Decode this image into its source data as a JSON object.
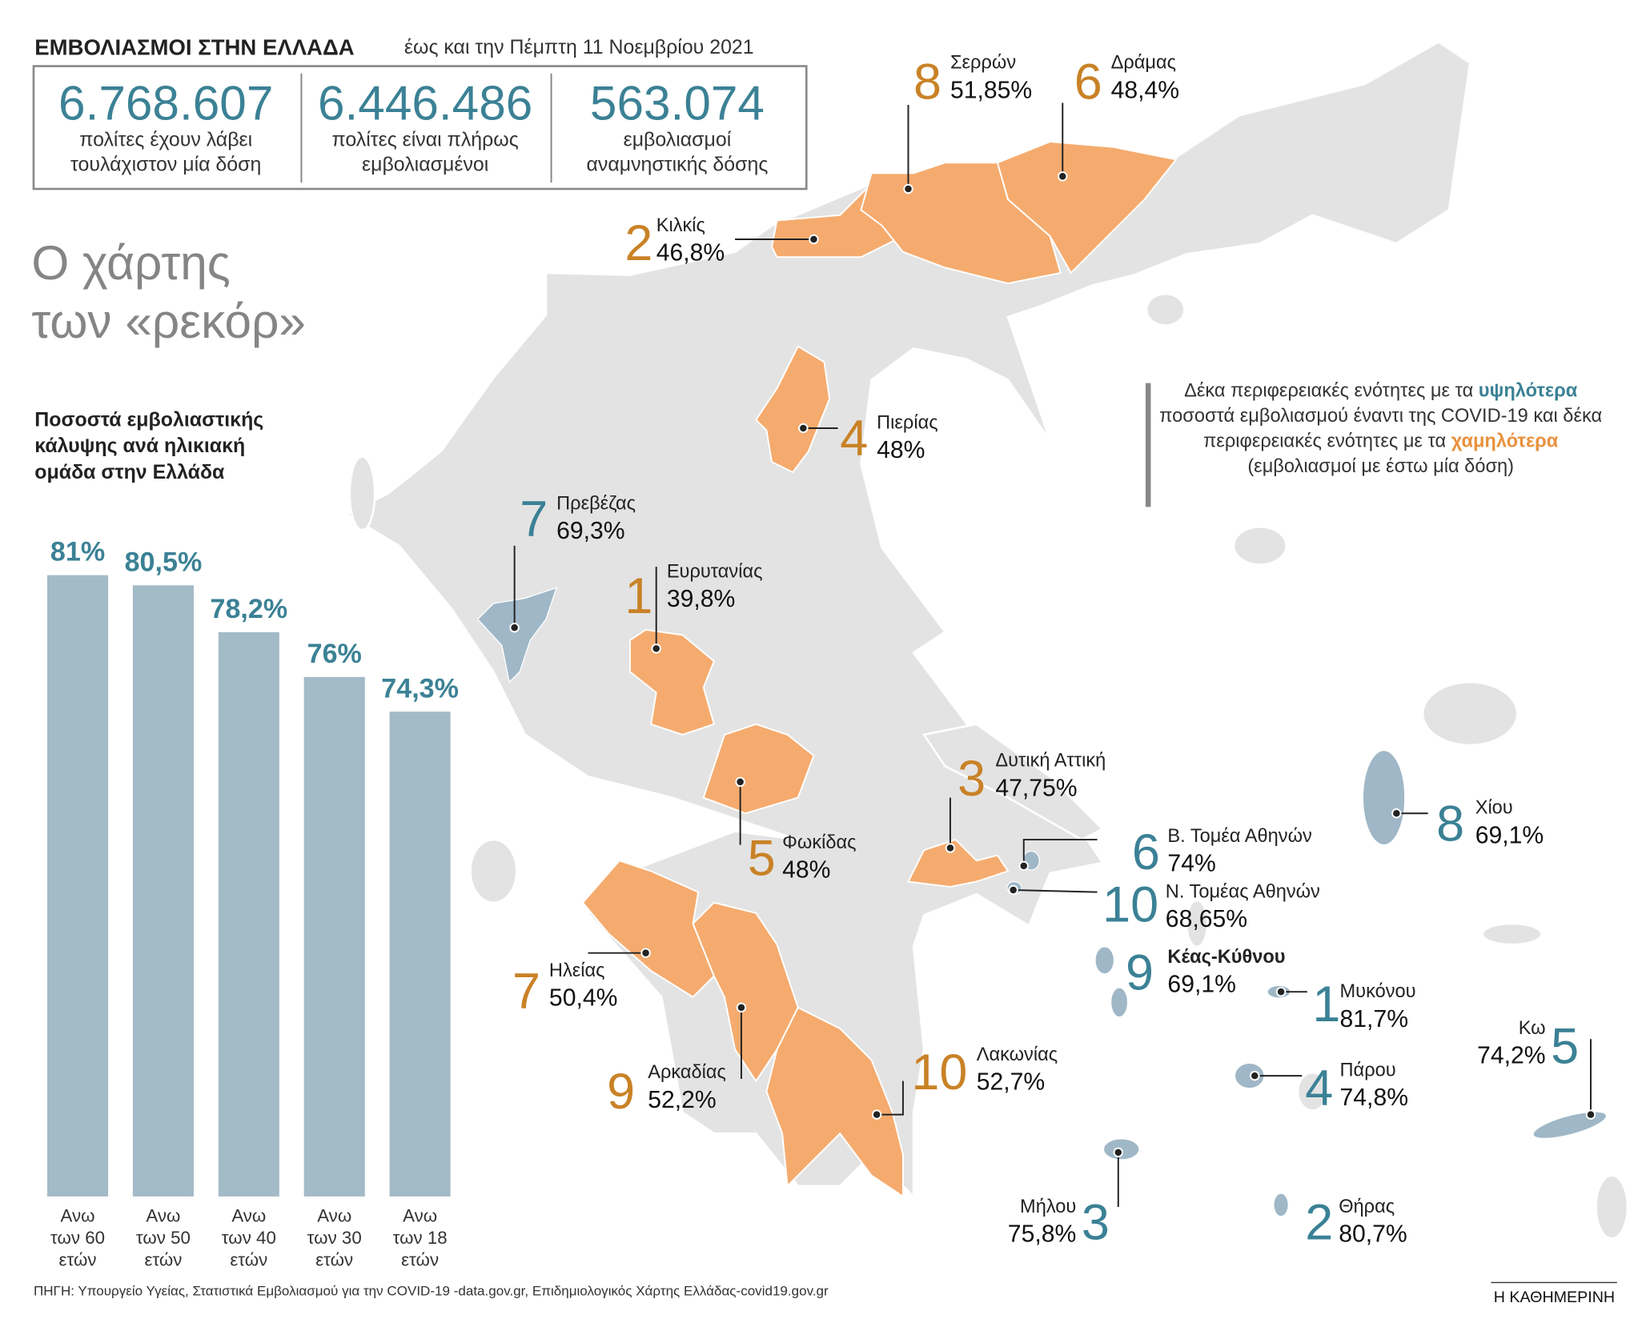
{
  "header": {
    "title": "ΕΜΒΟΛΙΑΣΜΟΙ ΣΤΗΝ ΕΛΛΑΔΑ",
    "date": "έως και την Πέμπτη 11 Νοεμβρίου 2021"
  },
  "stats": [
    {
      "value": "6.768.607",
      "label": "πολίτες έχουν λάβει\nτουλάχιστον μία δόση"
    },
    {
      "value": "6.446.486",
      "label": "πολίτες είναι πλήρως\nεμβολιασμένοι"
    },
    {
      "value": "563.074",
      "label": "εμβολιασμοί\nαναμνηστικής δόσης"
    }
  ],
  "map_title": "Ο χάρτης\nτων «ρεκόρ»",
  "chart_data": {
    "type": "bar",
    "title": "Ποσοστά εμβολιαστικής\nκάλυψης ανά ηλικιακή\nομάδα στην Ελλάδα",
    "categories": [
      "Ανω\nτων 60\nετών",
      "Ανω\nτων 50\nετών",
      "Ανω\nτων 40\nετών",
      "Ανω\nτων 30\nετών",
      "Ανω\nτων 18\nετών"
    ],
    "values": [
      81,
      80.5,
      78.2,
      76,
      74.3
    ],
    "value_labels": [
      "81%",
      "80,5%",
      "78,2%",
      "76%",
      "74,3%"
    ],
    "color": "#a3bac7",
    "label_color": "#3b8195",
    "ylim": [
      50.5,
      81
    ]
  },
  "legend": {
    "parts": [
      "Δέκα περιφερειακές ενότητες με τα ",
      "υψηλότερα",
      " ποσοστά εμβολιασμού έναντι της COVID-19 και δέκα περιφερειακές ενότητες με τα ",
      "χαμηλότερα",
      " (εμβολιασμοί με έστω μία δόση)"
    ],
    "high_color": "#3b8195",
    "low_color": "#e8913c"
  },
  "lowest": [
    {
      "rank": 1,
      "name": "Ευρυτανίας",
      "pct": "39,8%"
    },
    {
      "rank": 2,
      "name": "Κιλκίς",
      "pct": "46,8%"
    },
    {
      "rank": 3,
      "name": "Δυτική Αττική",
      "pct": "47,75%"
    },
    {
      "rank": 4,
      "name": "Πιερίας",
      "pct": "48%"
    },
    {
      "rank": 5,
      "name": "Φωκίδας",
      "pct": "48%"
    },
    {
      "rank": 6,
      "name": "Δράμας",
      "pct": "48,4%"
    },
    {
      "rank": 7,
      "name": "Ηλείας",
      "pct": "50,4%"
    },
    {
      "rank": 8,
      "name": "Σερρών",
      "pct": "51,85%"
    },
    {
      "rank": 9,
      "name": "Αρκαδίας",
      "pct": "52,2%"
    },
    {
      "rank": 10,
      "name": "Λακωνίας",
      "pct": "52,7%"
    }
  ],
  "highest": [
    {
      "rank": 1,
      "name": "Μυκόνου",
      "pct": "81,7%"
    },
    {
      "rank": 2,
      "name": "Θήρας",
      "pct": "80,7%"
    },
    {
      "rank": 3,
      "name": "Μήλου",
      "pct": "75,8%"
    },
    {
      "rank": 4,
      "name": "Πάρου",
      "pct": "74,8%"
    },
    {
      "rank": 5,
      "name": "Κω",
      "pct": "74,2%"
    },
    {
      "rank": 6,
      "name": "Β. Τομέα Αθηνών",
      "pct": "74%"
    },
    {
      "rank": 7,
      "name": "Πρεβέζας",
      "pct": "69,3%"
    },
    {
      "rank": 8,
      "name": "Χίου",
      "pct": "69,1%"
    },
    {
      "rank": 9,
      "name": "Κέας-Κύθνου",
      "pct": "69,1%"
    },
    {
      "rank": 10,
      "name": "Ν. Τομέας Αθηνών",
      "pct": "68,65%"
    }
  ],
  "source": "ΠΗΓΗ: Υπουργείο Υγείας, Στατιστικά Εμβολιασμού για την COVID-19 -data.gov.gr, Επιδημιολογικός Χάρτης Ελλάδας-covid19.gov.gr",
  "brand": "Η ΚΑΘΗΜΕΡΙΝΗ"
}
